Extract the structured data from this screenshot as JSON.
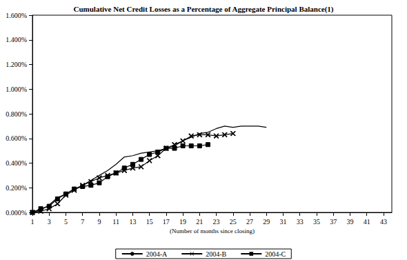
{
  "chart_data": {
    "type": "line",
    "title": "Cumulative Net Credit Losses as a Percentage of Aggregate Principal Balance(1)",
    "x_label": "(Number of months since closing)",
    "x": [
      1,
      2,
      3,
      4,
      5,
      6,
      7,
      8,
      9,
      10,
      11,
      12,
      13,
      14,
      15,
      16,
      17,
      18,
      19,
      20,
      21,
      22,
      23,
      24,
      25,
      26,
      27,
      28,
      29
    ],
    "series": [
      {
        "name": "2004-A",
        "color": "#000000",
        "marker": "none",
        "line_style": "solid",
        "values": [
          0.0,
          0.02,
          0.06,
          0.12,
          0.15,
          0.19,
          0.22,
          0.26,
          0.3,
          0.34,
          0.39,
          0.45,
          0.46,
          0.48,
          0.49,
          0.5,
          0.52,
          0.54,
          0.58,
          0.61,
          0.64,
          0.65,
          0.68,
          0.7,
          0.69,
          0.7,
          0.7,
          0.7,
          0.69
        ]
      },
      {
        "name": "2004-B",
        "color": "#000000",
        "marker": "cross",
        "line_style": "solid",
        "values": [
          0.0,
          0.01,
          0.03,
          0.07,
          0.14,
          0.18,
          0.22,
          0.25,
          0.28,
          0.3,
          0.32,
          0.34,
          0.36,
          0.37,
          0.42,
          0.46,
          0.52,
          0.55,
          0.58,
          0.62,
          0.63,
          0.63,
          0.62,
          0.63,
          0.64,
          null,
          null,
          null,
          null
        ]
      },
      {
        "name": "2004-C",
        "color": "#000000",
        "marker": "square",
        "line_style": "solid",
        "values": [
          0.0,
          0.03,
          0.05,
          0.11,
          0.15,
          0.19,
          0.21,
          0.22,
          0.24,
          0.29,
          0.32,
          0.36,
          0.39,
          0.43,
          0.47,
          0.49,
          0.52,
          0.52,
          0.54,
          0.54,
          0.54,
          0.55,
          null,
          null,
          null,
          null,
          null,
          null,
          null
        ]
      }
    ],
    "xlim": [
      1,
      44
    ],
    "xticks": [
      1,
      3,
      5,
      7,
      9,
      11,
      13,
      15,
      17,
      19,
      21,
      23,
      25,
      27,
      29,
      31,
      33,
      35,
      37,
      39,
      41,
      43
    ],
    "ylim": [
      0,
      1.6
    ],
    "yticks": [
      {
        "value": 0,
        "label": "0.000%"
      },
      {
        "value": 0.2,
        "label": "0.200%"
      },
      {
        "value": 0.4,
        "label": "0.400%"
      },
      {
        "value": 0.6,
        "label": "0.600%"
      },
      {
        "value": 0.8,
        "label": "0.800%"
      },
      {
        "value": 1.0,
        "label": "1.000%"
      },
      {
        "value": 1.2,
        "label": "1.200%"
      },
      {
        "value": 1.4,
        "label": "1.400%"
      },
      {
        "value": 1.6,
        "label": "1.600%"
      }
    ],
    "grid": false,
    "legend": "bottom"
  }
}
